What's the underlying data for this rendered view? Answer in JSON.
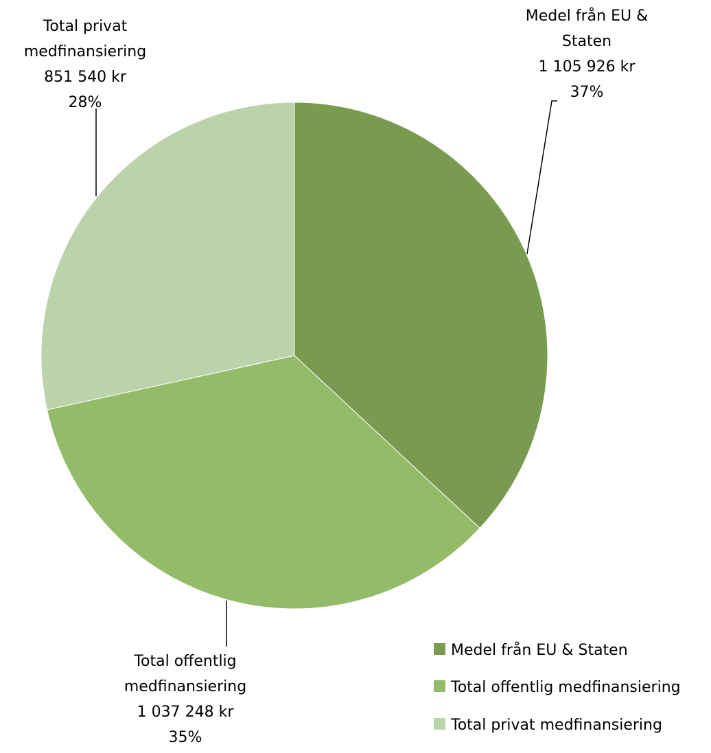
{
  "chart_data": {
    "type": "pie",
    "title": "",
    "slices": [
      {
        "label": "Medel från EU & Staten",
        "label_lines": [
          "Medel från EU &",
          "Staten"
        ],
        "amount": 1105926,
        "amount_text": "1 105 926 kr",
        "percent_text": "37%",
        "color": "#789B50"
      },
      {
        "label": "Total offentlig medfinansiering",
        "label_lines": [
          "Total offentlig",
          "medfinansiering"
        ],
        "amount": 1037248,
        "amount_text": "1 037 248 kr",
        "percent_text": "35%",
        "color": "#94BB68"
      },
      {
        "label": "Total privat medfinansiering",
        "label_lines": [
          "Total privat",
          "medfinansiering"
        ],
        "amount": 851540,
        "amount_text": "851 540 kr",
        "percent_text": "28%",
        "color": "#BBD3AA"
      }
    ],
    "start_angle_deg": 0,
    "direction": "clockwise",
    "legend": {
      "position": "bottom-right",
      "items": [
        "Medel från EU & Staten",
        "Total offentlig medfinansiering",
        "Total privat medfinansiering"
      ]
    }
  }
}
